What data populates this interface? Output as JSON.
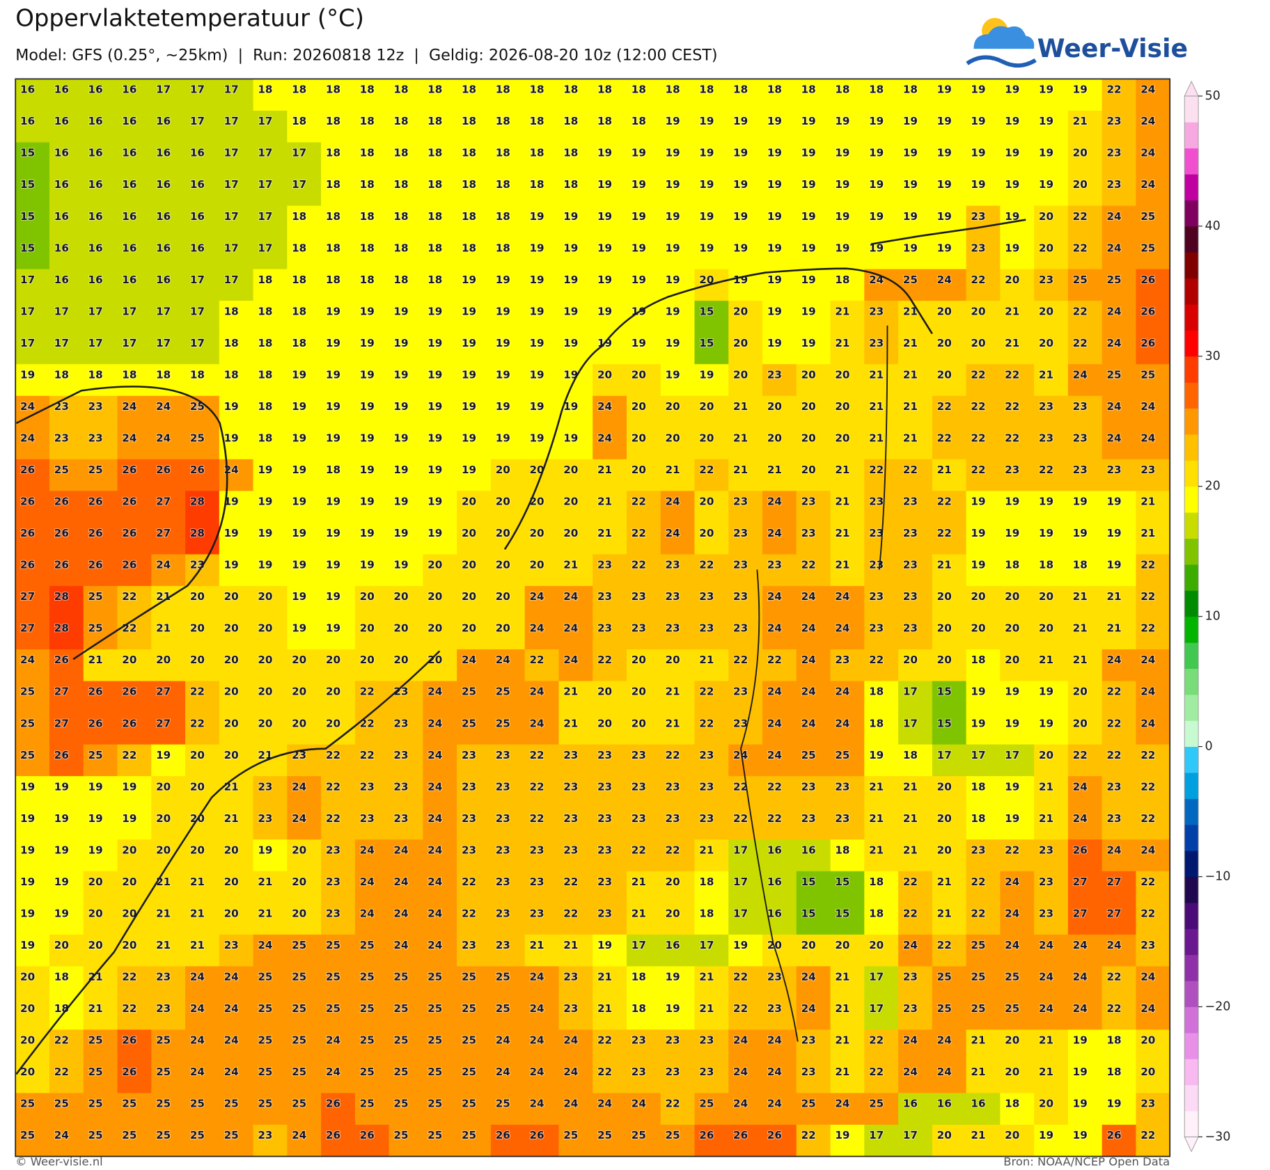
{
  "header": {
    "title": "Oppervlaktetemperatuur (°C)",
    "subtitle": "Model: GFS (0.25°, ~25km)  |  Run: 20260818 12z  |  Geldig: 2026-08-20 10z (12:00 CEST)",
    "logo": "Weer-Visie"
  },
  "map": {
    "values": [
      [
        16,
        16,
        16,
        16,
        17,
        17,
        17,
        18,
        18,
        18,
        18,
        18,
        18,
        18,
        18,
        18,
        18,
        18,
        18,
        18,
        18,
        18,
        18,
        18,
        18,
        18,
        18,
        19,
        19,
        19,
        19,
        19,
        22,
        24
      ],
      [
        16,
        16,
        16,
        16,
        16,
        17,
        17,
        17,
        18,
        18,
        18,
        18,
        18,
        18,
        18,
        18,
        18,
        18,
        18,
        19,
        19,
        19,
        19,
        19,
        19,
        19,
        19,
        19,
        19,
        19,
        19,
        21,
        23,
        24
      ],
      [
        15,
        16,
        16,
        16,
        16,
        16,
        17,
        17,
        17,
        18,
        18,
        18,
        18,
        18,
        18,
        18,
        18,
        19,
        19,
        19,
        19,
        19,
        19,
        19,
        19,
        19,
        19,
        19,
        19,
        19,
        19,
        20,
        23,
        24
      ],
      [
        15,
        16,
        16,
        16,
        16,
        16,
        17,
        17,
        17,
        18,
        18,
        18,
        18,
        18,
        18,
        18,
        18,
        19,
        19,
        19,
        19,
        19,
        19,
        19,
        19,
        19,
        19,
        19,
        19,
        19,
        19,
        20,
        23,
        24
      ],
      [
        15,
        16,
        16,
        16,
        16,
        16,
        17,
        17,
        18,
        18,
        18,
        18,
        18,
        18,
        18,
        19,
        19,
        19,
        19,
        19,
        19,
        19,
        19,
        19,
        19,
        19,
        19,
        19,
        23,
        19,
        20,
        22,
        24,
        25
      ],
      [
        15,
        16,
        16,
        16,
        16,
        16,
        17,
        17,
        18,
        18,
        18,
        18,
        18,
        18,
        18,
        19,
        19,
        19,
        19,
        19,
        19,
        19,
        19,
        19,
        19,
        19,
        19,
        19,
        23,
        19,
        20,
        22,
        24,
        25
      ],
      [
        17,
        16,
        16,
        16,
        16,
        17,
        17,
        18,
        18,
        18,
        18,
        18,
        18,
        19,
        19,
        19,
        19,
        19,
        19,
        19,
        20,
        19,
        19,
        19,
        18,
        24,
        25,
        24,
        22,
        20,
        23,
        25,
        25,
        26
      ],
      [
        17,
        17,
        17,
        17,
        17,
        17,
        18,
        18,
        18,
        19,
        19,
        19,
        19,
        19,
        19,
        19,
        19,
        19,
        19,
        19,
        15,
        20,
        19,
        19,
        21,
        23,
        21,
        20,
        20,
        21,
        20,
        22,
        24,
        26
      ],
      [
        17,
        17,
        17,
        17,
        17,
        17,
        18,
        18,
        18,
        19,
        19,
        19,
        19,
        19,
        19,
        19,
        19,
        19,
        19,
        19,
        15,
        20,
        19,
        19,
        21,
        23,
        21,
        20,
        20,
        21,
        20,
        22,
        24,
        26
      ],
      [
        19,
        18,
        18,
        18,
        18,
        18,
        18,
        18,
        19,
        19,
        19,
        19,
        19,
        19,
        19,
        19,
        19,
        20,
        20,
        19,
        19,
        20,
        23,
        20,
        20,
        21,
        21,
        20,
        22,
        22,
        21,
        24,
        25,
        25
      ],
      [
        24,
        23,
        23,
        24,
        24,
        25,
        19,
        18,
        19,
        19,
        19,
        19,
        19,
        19,
        19,
        19,
        19,
        24,
        20,
        20,
        20,
        21,
        20,
        20,
        20,
        21,
        21,
        22,
        22,
        22,
        23,
        23,
        24,
        24
      ],
      [
        24,
        23,
        23,
        24,
        24,
        25,
        19,
        18,
        19,
        19,
        19,
        19,
        19,
        19,
        19,
        19,
        19,
        24,
        20,
        20,
        20,
        21,
        20,
        20,
        20,
        21,
        21,
        22,
        22,
        22,
        23,
        23,
        24,
        24
      ],
      [
        26,
        25,
        25,
        26,
        26,
        26,
        24,
        19,
        19,
        18,
        19,
        19,
        19,
        19,
        20,
        20,
        20,
        21,
        20,
        21,
        22,
        21,
        21,
        20,
        21,
        22,
        22,
        21,
        22,
        23,
        22,
        23,
        23,
        23
      ],
      [
        26,
        26,
        26,
        26,
        27,
        28,
        19,
        19,
        19,
        19,
        19,
        19,
        19,
        20,
        20,
        20,
        20,
        21,
        22,
        24,
        20,
        23,
        24,
        23,
        21,
        23,
        23,
        22,
        19,
        19,
        19,
        19,
        19,
        21
      ],
      [
        26,
        26,
        26,
        26,
        27,
        28,
        19,
        19,
        19,
        19,
        19,
        19,
        19,
        20,
        20,
        20,
        20,
        21,
        22,
        24,
        20,
        23,
        24,
        23,
        21,
        23,
        23,
        22,
        19,
        19,
        19,
        19,
        19,
        21
      ],
      [
        26,
        26,
        26,
        26,
        24,
        23,
        19,
        19,
        19,
        19,
        19,
        19,
        20,
        20,
        20,
        20,
        21,
        23,
        22,
        23,
        22,
        23,
        23,
        22,
        21,
        23,
        23,
        21,
        19,
        18,
        18,
        18,
        19,
        22
      ],
      [
        27,
        28,
        25,
        22,
        21,
        20,
        20,
        20,
        19,
        19,
        20,
        20,
        20,
        20,
        20,
        24,
        24,
        23,
        23,
        23,
        23,
        23,
        24,
        24,
        24,
        23,
        23,
        20,
        20,
        20,
        20,
        21,
        21,
        22
      ],
      [
        27,
        28,
        25,
        22,
        21,
        20,
        20,
        20,
        19,
        19,
        20,
        20,
        20,
        20,
        20,
        24,
        24,
        23,
        23,
        23,
        23,
        23,
        24,
        24,
        24,
        23,
        23,
        20,
        20,
        20,
        20,
        21,
        21,
        22
      ],
      [
        24,
        26,
        21,
        20,
        20,
        20,
        20,
        20,
        20,
        20,
        20,
        20,
        20,
        24,
        24,
        22,
        24,
        22,
        20,
        20,
        21,
        22,
        22,
        24,
        23,
        22,
        20,
        20,
        18,
        20,
        21,
        21,
        24,
        24
      ],
      [
        25,
        27,
        26,
        26,
        27,
        22,
        20,
        20,
        20,
        20,
        22,
        23,
        24,
        25,
        25,
        24,
        21,
        20,
        20,
        21,
        22,
        23,
        24,
        24,
        24,
        18,
        17,
        15,
        19,
        19,
        19,
        20,
        22,
        24
      ],
      [
        25,
        27,
        26,
        26,
        27,
        22,
        20,
        20,
        20,
        20,
        22,
        23,
        24,
        25,
        25,
        24,
        21,
        20,
        20,
        21,
        22,
        23,
        24,
        24,
        24,
        18,
        17,
        15,
        19,
        19,
        19,
        20,
        22,
        24
      ],
      [
        25,
        26,
        25,
        22,
        19,
        20,
        20,
        21,
        23,
        22,
        22,
        23,
        24,
        23,
        23,
        22,
        23,
        23,
        23,
        22,
        23,
        24,
        24,
        25,
        25,
        19,
        18,
        17,
        17,
        17,
        20,
        22,
        22,
        22
      ],
      [
        19,
        19,
        19,
        19,
        20,
        20,
        21,
        23,
        24,
        22,
        23,
        23,
        24,
        23,
        23,
        22,
        23,
        23,
        23,
        23,
        23,
        22,
        22,
        23,
        23,
        21,
        21,
        20,
        18,
        19,
        21,
        24,
        23,
        22
      ],
      [
        19,
        19,
        19,
        19,
        20,
        20,
        21,
        23,
        24,
        22,
        23,
        23,
        24,
        23,
        23,
        22,
        23,
        23,
        23,
        23,
        23,
        22,
        22,
        23,
        23,
        21,
        21,
        20,
        18,
        19,
        21,
        24,
        23,
        22
      ],
      [
        19,
        19,
        19,
        20,
        20,
        20,
        20,
        19,
        20,
        23,
        24,
        24,
        24,
        23,
        23,
        23,
        23,
        23,
        22,
        22,
        21,
        17,
        16,
        16,
        18,
        21,
        21,
        20,
        23,
        22,
        23,
        26,
        24,
        24
      ],
      [
        19,
        19,
        20,
        20,
        21,
        21,
        20,
        21,
        20,
        23,
        24,
        24,
        24,
        22,
        23,
        23,
        22,
        23,
        21,
        20,
        18,
        17,
        16,
        15,
        15,
        18,
        22,
        21,
        22,
        24,
        23,
        27,
        27,
        22
      ],
      [
        19,
        19,
        20,
        20,
        21,
        21,
        20,
        21,
        20,
        23,
        24,
        24,
        24,
        22,
        23,
        23,
        22,
        23,
        21,
        20,
        18,
        17,
        16,
        15,
        15,
        18,
        22,
        21,
        22,
        24,
        23,
        27,
        27,
        22
      ],
      [
        19,
        20,
        20,
        20,
        21,
        21,
        23,
        24,
        25,
        25,
        25,
        24,
        24,
        23,
        23,
        21,
        21,
        19,
        17,
        16,
        17,
        19,
        20,
        20,
        20,
        20,
        24,
        22,
        25,
        24,
        24,
        24,
        24,
        23
      ],
      [
        20,
        18,
        21,
        22,
        23,
        24,
        24,
        25,
        25,
        25,
        25,
        25,
        25,
        25,
        25,
        24,
        23,
        21,
        18,
        19,
        21,
        22,
        23,
        24,
        21,
        17,
        23,
        25,
        25,
        25,
        24,
        24,
        22,
        24
      ],
      [
        20,
        18,
        21,
        22,
        23,
        24,
        24,
        25,
        25,
        25,
        25,
        25,
        25,
        25,
        25,
        24,
        23,
        21,
        18,
        19,
        21,
        22,
        23,
        24,
        21,
        17,
        23,
        25,
        25,
        25,
        24,
        24,
        22,
        24
      ],
      [
        20,
        22,
        25,
        26,
        25,
        24,
        24,
        25,
        25,
        24,
        25,
        25,
        25,
        25,
        24,
        24,
        24,
        22,
        23,
        23,
        23,
        24,
        24,
        23,
        21,
        22,
        24,
        24,
        21,
        20,
        21,
        19,
        18,
        20
      ],
      [
        20,
        22,
        25,
        26,
        25,
        24,
        24,
        25,
        25,
        24,
        25,
        25,
        25,
        25,
        24,
        24,
        24,
        22,
        23,
        23,
        23,
        24,
        24,
        23,
        21,
        22,
        24,
        24,
        21,
        20,
        21,
        19,
        18,
        20
      ],
      [
        25,
        25,
        25,
        25,
        25,
        25,
        25,
        25,
        25,
        26,
        25,
        25,
        25,
        25,
        25,
        24,
        24,
        24,
        24,
        22,
        25,
        24,
        24,
        25,
        24,
        25,
        16,
        16,
        16,
        18,
        20,
        19,
        19,
        23
      ],
      [
        25,
        24,
        25,
        25,
        25,
        25,
        25,
        23,
        24,
        26,
        26,
        25,
        25,
        25,
        26,
        26,
        25,
        25,
        25,
        25,
        26,
        26,
        26,
        22,
        19,
        17,
        17,
        20,
        21,
        20,
        19,
        19,
        26,
        22
      ]
    ]
  },
  "colorbar": {
    "ylim": [
      -30,
      50
    ],
    "yticks": [
      50,
      40,
      30,
      20,
      10,
      0,
      {
        "value": -10,
        "label": "−10"
      },
      {
        "value": -20,
        "label": "−20"
      },
      {
        "value": -30,
        "label": "−30"
      }
    ],
    "colors": [
      "#fff0fa",
      "#fcdaf6",
      "#f8b8f0",
      "#e890e8",
      "#d070d8",
      "#b050c0",
      "#9030a8",
      "#6a1890",
      "#4a0a78",
      "#200850",
      "#001870",
      "#0040a8",
      "#0068c0",
      "#00a0e0",
      "#30c8f8",
      "#c8fad2",
      "#a0eca0",
      "#78dc78",
      "#40c850",
      "#00b400",
      "#008c00",
      "#3cac00",
      "#80c400",
      "#c8dc00",
      "#ffff00",
      "#ffe000",
      "#ffc000",
      "#ff9800",
      "#ff6400",
      "#ff3c00",
      "#ff0000",
      "#d80000",
      "#b00000",
      "#800000",
      "#500020",
      "#800060",
      "#c000a0",
      "#f050d0",
      "#f8a8e0",
      "#fde0f0"
    ]
  },
  "footer": {
    "credit": "© Weer-visie.nl",
    "source": "Bron: NOAA/NCEP Open Data"
  }
}
